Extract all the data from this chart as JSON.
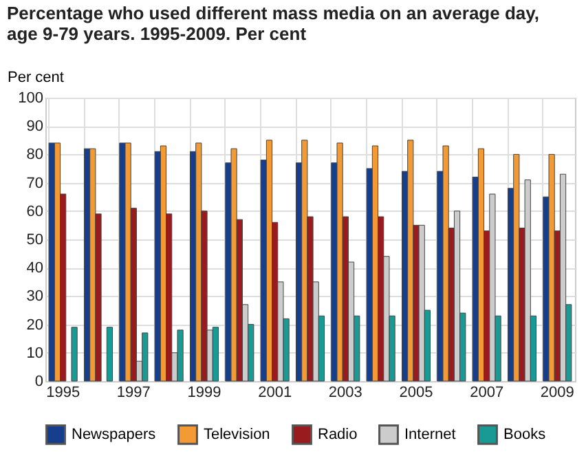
{
  "chart_data": {
    "type": "bar",
    "title": "Percentage who used different mass media on an average day,\nage 9-79 years. 1995-2009. Per cent",
    "ylabel": "Per cent",
    "categories": [
      "1995",
      null,
      "1997",
      null,
      "1999",
      null,
      "2001",
      null,
      "2003",
      null,
      "2005",
      null,
      "2007",
      null,
      "2009"
    ],
    "series": [
      {
        "name": "Newspapers",
        "color": "#153e8c",
        "values": [
          84,
          82,
          84,
          81,
          81,
          77,
          78,
          77,
          77,
          75,
          74,
          74,
          72,
          68,
          65
        ]
      },
      {
        "name": "Television",
        "color": "#f39a35",
        "values": [
          84,
          82,
          84,
          83,
          84,
          82,
          85,
          85,
          84,
          83,
          85,
          83,
          82,
          80,
          80
        ]
      },
      {
        "name": "Radio",
        "color": "#991b1e",
        "values": [
          66,
          59,
          61,
          59,
          60,
          57,
          56,
          58,
          58,
          58,
          55,
          54,
          53,
          54,
          53
        ]
      },
      {
        "name": "Internet",
        "color": "#cccccc",
        "values": [
          null,
          null,
          7,
          10,
          18,
          27,
          35,
          35,
          42,
          44,
          55,
          60,
          66,
          71,
          73
        ]
      },
      {
        "name": "Books",
        "color": "#1a9a95",
        "values": [
          19,
          19,
          17,
          18,
          19,
          20,
          22,
          23,
          23,
          23,
          25,
          24,
          23,
          23,
          27
        ]
      }
    ],
    "ylim": [
      0,
      100
    ],
    "yticks": [
      0,
      10,
      20,
      30,
      40,
      50,
      60,
      70,
      80,
      90,
      100
    ],
    "grid": true,
    "legend": "bottom"
  }
}
